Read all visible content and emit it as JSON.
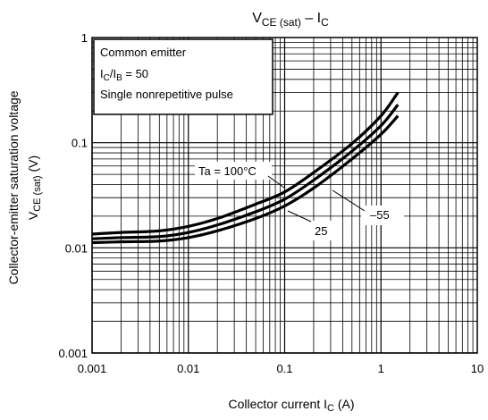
{
  "chart_data": {
    "type": "line",
    "title": {
      "main": "V",
      "main_sub": "CE (sat)",
      "dash": " – I",
      "dash_sub": "C"
    },
    "xlabel": {
      "main": "Collector current",
      "symbol": "I",
      "symbol_sub": "C",
      "unit": "(A)"
    },
    "ylabel": {
      "line1": "Collector-emitter saturation voltage",
      "symbol": "V",
      "symbol_sub": "CE (sat)",
      "unit": "(V)"
    },
    "x_scale": "log",
    "y_scale": "log",
    "xlim": [
      0.001,
      10
    ],
    "ylim": [
      0.001,
      1
    ],
    "grid": true,
    "x_ticks": [
      {
        "value": 0.001,
        "label": "0.001"
      },
      {
        "value": 0.01,
        "label": "0.01"
      },
      {
        "value": 0.1,
        "label": "0.1"
      },
      {
        "value": 1,
        "label": "1"
      },
      {
        "value": 10,
        "label": "10"
      }
    ],
    "y_ticks": [
      {
        "value": 0.001,
        "label": "0.001"
      },
      {
        "value": 0.01,
        "label": "0.01"
      },
      {
        "value": 0.1,
        "label": "0.1"
      },
      {
        "value": 1,
        "label": "1"
      }
    ],
    "conditions": {
      "line1": "Common emitter",
      "line2_a": "I",
      "line2_a_sub": "C",
      "line2_b": "/I",
      "line2_b_sub": "B",
      "line2_c": " = 50",
      "line3": "Single nonrepetitive pulse"
    },
    "series": [
      {
        "name": "Ta = 100°C",
        "x": [
          0.001,
          0.002,
          0.005,
          0.01,
          0.02,
          0.05,
          0.1,
          0.2,
          0.5,
          1,
          1.5
        ],
        "y": [
          0.0135,
          0.014,
          0.0145,
          0.016,
          0.019,
          0.026,
          0.034,
          0.052,
          0.098,
          0.18,
          0.3
        ]
      },
      {
        "name": "25",
        "x": [
          0.001,
          0.002,
          0.005,
          0.01,
          0.02,
          0.05,
          0.1,
          0.2,
          0.5,
          1,
          1.5
        ],
        "y": [
          0.0122,
          0.0125,
          0.0128,
          0.014,
          0.0165,
          0.022,
          0.029,
          0.044,
          0.083,
          0.145,
          0.23
        ]
      },
      {
        "name": "–55",
        "x": [
          0.001,
          0.002,
          0.005,
          0.01,
          0.02,
          0.05,
          0.1,
          0.2,
          0.5,
          1,
          1.5
        ],
        "y": [
          0.0112,
          0.0114,
          0.0116,
          0.0125,
          0.0145,
          0.019,
          0.025,
          0.037,
          0.07,
          0.12,
          0.18
        ]
      }
    ]
  }
}
